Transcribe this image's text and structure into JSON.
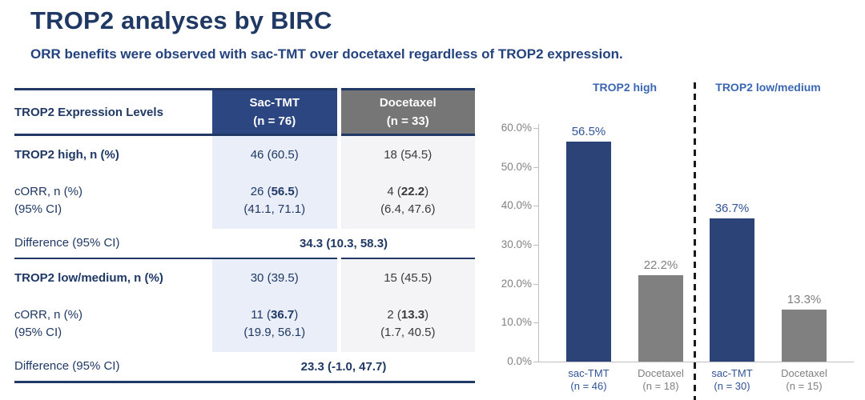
{
  "slide": {
    "title": "TROP2 analyses by BIRC",
    "subtitle": "ORR benefits were observed with sac-TMT over docetaxel regardless of TROP2 expression."
  },
  "colors": {
    "navy_text": "#1f3864",
    "header_blue": "#2b4680",
    "header_gray": "#767676",
    "cell_light_blue": "#e9eef8",
    "cell_light_gray": "#f4f4f6",
    "bar_blue": "#2b4377",
    "bar_gray": "#808080",
    "label_blue": "#2f5496",
    "label_gray": "#7f7f7f",
    "axis_gray": "#bfbfbf"
  },
  "table": {
    "header": {
      "label": "TROP2 Expression Levels",
      "sac_line1": "Sac-TMT",
      "sac_line2": "(n = 76)",
      "doc_line1": "Docetaxel",
      "doc_line2": "(n = 33)"
    },
    "sections": [
      {
        "group_label": "TROP2 high, n (%)",
        "group_sac": "46 (60.5)",
        "group_doc": "18 (54.5)",
        "corr_label": "cORR, n (%)",
        "ci_label": "(95% CI)",
        "corr_sac_pre": "26 (",
        "corr_sac_bold": "56.5",
        "corr_sac_post": ")",
        "ci_sac": "(41.1, 71.1)",
        "corr_doc_pre": "4 (",
        "corr_doc_bold": "22.2",
        "corr_doc_post": ")",
        "ci_doc": "(6.4, 47.6)",
        "diff_label": "Difference (95% CI)",
        "diff_value": "34.3 (10.3, 58.3)"
      },
      {
        "group_label": "TROP2 low/medium, n (%)",
        "group_sac": "30 (39.5)",
        "group_doc": "15 (45.5)",
        "corr_label": "cORR, n (%)",
        "ci_label": "(95% CI)",
        "corr_sac_pre": "11 (",
        "corr_sac_bold": "36.7",
        "corr_sac_post": ")",
        "ci_sac": "(19.9, 56.1)",
        "corr_doc_pre": "2 (",
        "corr_doc_bold": "13.3",
        "corr_doc_post": ")",
        "ci_doc": "(1.7, 40.5)",
        "diff_label": "Difference (95% CI)",
        "diff_value": "23.3 (-1.0, 47.7)"
      }
    ]
  },
  "chart_data": {
    "type": "bar",
    "title": "",
    "xlabel": "",
    "ylabel": "",
    "ylim": [
      0,
      60
    ],
    "grid": false,
    "legend_position": "none",
    "ytick_values": [
      0,
      10,
      20,
      30,
      40,
      50,
      60
    ],
    "ytick_labels": [
      "0.0%",
      "10.0%",
      "20.0%",
      "30.0%",
      "40.0%",
      "50.0%",
      "60.0%"
    ],
    "groups": [
      {
        "title": "TROP2 high",
        "title_color": "#3a66b4",
        "bars": [
          {
            "x_label_line1": "sac-TMT",
            "x_label_line2": "(n = 46)",
            "value": 56.5,
            "value_label": "56.5%",
            "bar_color": "#2b4377",
            "text_color": "#2f5496"
          },
          {
            "x_label_line1": "Docetaxel",
            "x_label_line2": "(n = 18)",
            "value": 22.2,
            "value_label": "22.2%",
            "bar_color": "#808080",
            "text_color": "#7f7f7f"
          }
        ]
      },
      {
        "title": "TROP2 low/medium",
        "title_color": "#3a66b4",
        "bars": [
          {
            "x_label_line1": "sac-TMT",
            "x_label_line2": "(n = 30)",
            "value": 36.7,
            "value_label": "36.7%",
            "bar_color": "#2b4377",
            "text_color": "#2f5496"
          },
          {
            "x_label_line1": "Docetaxel",
            "x_label_line2": "(n = 15)",
            "value": 13.3,
            "value_label": "13.3%",
            "bar_color": "#808080",
            "text_color": "#7f7f7f"
          }
        ]
      }
    ]
  }
}
